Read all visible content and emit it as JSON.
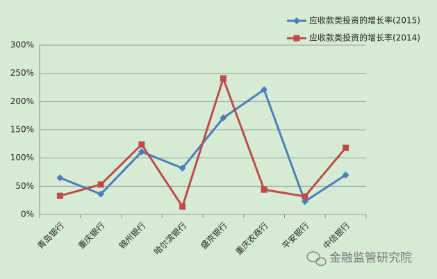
{
  "chart_data": {
    "type": "line",
    "categories": [
      "青岛银行",
      "重庆银行",
      "锦州银行",
      "哈尔滨银行",
      "盛京银行",
      "重庆农商行",
      "平安银行",
      "中信银行"
    ],
    "series": [
      {
        "name": "应收款类投资的增长率(2015)",
        "color": "#4a7ebb",
        "marker": "diamond",
        "values": [
          65,
          36,
          111,
          82,
          171,
          221,
          23,
          70
        ]
      },
      {
        "name": "应收款类投资的增长率(2014)",
        "color": "#be4b48",
        "marker": "square",
        "values": [
          33,
          53,
          124,
          14,
          241,
          44,
          32,
          118
        ]
      }
    ],
    "ylim": [
      0,
      300
    ],
    "yticks": [
      {
        "value": 0,
        "label": "0%"
      },
      {
        "value": 50,
        "label": "50%"
      },
      {
        "value": 100,
        "label": "100%"
      },
      {
        "value": 150,
        "label": "150%"
      },
      {
        "value": 200,
        "label": "200%"
      },
      {
        "value": 250,
        "label": "250%"
      },
      {
        "value": 300,
        "label": "300%"
      }
    ],
    "grid": true,
    "legend": "top-right",
    "watermark": "金融监管研究院"
  }
}
